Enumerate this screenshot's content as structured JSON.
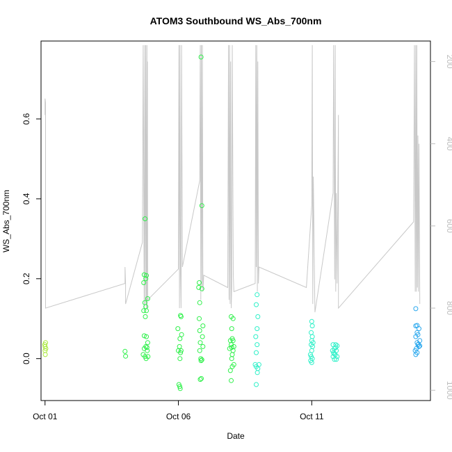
{
  "chart_data": {
    "type": "scatter",
    "title": "ATOM3 Southbound WS_Abs_700nm",
    "xlabel": "Date",
    "ylabel": "WS_Abs_700nm",
    "x_ticks": [
      {
        "day": 1,
        "label": "Oct 01"
      },
      {
        "day": 6,
        "label": "Oct 06"
      },
      {
        "day": 11,
        "label": "Oct 11"
      }
    ],
    "y_ticks": [
      0.0,
      0.2,
      0.4,
      0.6
    ],
    "y_tick_labels": [
      "0.0",
      "0.2",
      "0.4",
      "0.6"
    ],
    "xlim": [
      0.85,
      15.45
    ],
    "ylim": [
      -0.105,
      0.795
    ],
    "secondary_axis": {
      "ticks": [
        200,
        400,
        600,
        800,
        1000
      ],
      "tick_labels": [
        "200",
        "400",
        "600",
        "800",
        "1000"
      ],
      "lim_top": 150,
      "lim_bottom": 1025,
      "reversed": true,
      "color": "#bdbdbd"
    },
    "grid": false,
    "legend": "none",
    "point_color_scale": [
      "#a8e83a",
      "#2ef04a",
      "#2ef0c8",
      "#2aa8ee"
    ],
    "points": [
      {
        "x": 1.0,
        "y": 0.03
      },
      {
        "x": 1.02,
        "y": 0.04
      },
      {
        "x": 1.0,
        "y": 0.02
      },
      {
        "x": 1.01,
        "y": 0.01
      },
      {
        "x": 1.03,
        "y": 0.025
      },
      {
        "x": 0.99,
        "y": 0.035
      },
      {
        "x": 4.0,
        "y": 0.018
      },
      {
        "x": 4.02,
        "y": 0.006
      },
      {
        "x": 4.75,
        "y": 0.35
      },
      {
        "x": 4.72,
        "y": 0.21
      },
      {
        "x": 4.78,
        "y": 0.2
      },
      {
        "x": 4.8,
        "y": 0.208
      },
      {
        "x": 4.7,
        "y": 0.19
      },
      {
        "x": 4.85,
        "y": 0.15
      },
      {
        "x": 4.74,
        "y": 0.14
      },
      {
        "x": 4.78,
        "y": 0.13
      },
      {
        "x": 4.7,
        "y": 0.12
      },
      {
        "x": 4.8,
        "y": 0.12
      },
      {
        "x": 4.76,
        "y": 0.105
      },
      {
        "x": 4.72,
        "y": 0.057
      },
      {
        "x": 4.8,
        "y": 0.055
      },
      {
        "x": 4.85,
        "y": 0.04
      },
      {
        "x": 4.78,
        "y": 0.03
      },
      {
        "x": 4.72,
        "y": 0.025
      },
      {
        "x": 4.83,
        "y": 0.02
      },
      {
        "x": 4.68,
        "y": 0.01
      },
      {
        "x": 4.75,
        "y": 0.005
      },
      {
        "x": 4.86,
        "y": 0.005
      },
      {
        "x": 4.79,
        "y": 0.0
      },
      {
        "x": 4.82,
        "y": 0.028
      },
      {
        "x": 5.98,
        "y": 0.075
      },
      {
        "x": 6.08,
        "y": 0.108
      },
      {
        "x": 6.1,
        "y": 0.105
      },
      {
        "x": 6.12,
        "y": 0.06
      },
      {
        "x": 6.06,
        "y": 0.05
      },
      {
        "x": 6.04,
        "y": 0.03
      },
      {
        "x": 6.1,
        "y": 0.02
      },
      {
        "x": 6.0,
        "y": 0.02
      },
      {
        "x": 6.08,
        "y": 0.015
      },
      {
        "x": 6.06,
        "y": 0.0
      },
      {
        "x": 6.02,
        "y": -0.065
      },
      {
        "x": 6.05,
        "y": -0.07
      },
      {
        "x": 6.07,
        "y": -0.075
      },
      {
        "x": 6.85,
        "y": 0.755
      },
      {
        "x": 6.88,
        "y": 0.383
      },
      {
        "x": 6.78,
        "y": 0.19
      },
      {
        "x": 6.76,
        "y": 0.178
      },
      {
        "x": 6.88,
        "y": 0.175
      },
      {
        "x": 6.8,
        "y": 0.14
      },
      {
        "x": 6.78,
        "y": 0.1
      },
      {
        "x": 6.92,
        "y": 0.082
      },
      {
        "x": 6.8,
        "y": 0.07
      },
      {
        "x": 6.9,
        "y": 0.055
      },
      {
        "x": 6.82,
        "y": 0.04
      },
      {
        "x": 6.92,
        "y": 0.03
      },
      {
        "x": 6.8,
        "y": 0.02
      },
      {
        "x": 6.84,
        "y": 0.0
      },
      {
        "x": 6.88,
        "y": -0.003
      },
      {
        "x": 6.85,
        "y": -0.005
      },
      {
        "x": 6.86,
        "y": -0.05
      },
      {
        "x": 6.82,
        "y": -0.052
      },
      {
        "x": 7.98,
        "y": 0.105
      },
      {
        "x": 8.05,
        "y": 0.1
      },
      {
        "x": 8.0,
        "y": 0.075
      },
      {
        "x": 8.02,
        "y": 0.05
      },
      {
        "x": 7.95,
        "y": 0.045
      },
      {
        "x": 8.05,
        "y": 0.045
      },
      {
        "x": 7.98,
        "y": 0.035
      },
      {
        "x": 8.08,
        "y": 0.03
      },
      {
        "x": 8.0,
        "y": 0.028
      },
      {
        "x": 7.92,
        "y": 0.025
      },
      {
        "x": 8.05,
        "y": 0.02
      },
      {
        "x": 8.02,
        "y": 0.01
      },
      {
        "x": 8.0,
        "y": 0.0
      },
      {
        "x": 8.08,
        "y": -0.015
      },
      {
        "x": 8.02,
        "y": -0.02
      },
      {
        "x": 7.95,
        "y": -0.03
      },
      {
        "x": 7.98,
        "y": -0.055
      },
      {
        "x": 8.95,
        "y": 0.16
      },
      {
        "x": 8.92,
        "y": 0.135
      },
      {
        "x": 8.98,
        "y": 0.105
      },
      {
        "x": 8.95,
        "y": 0.075
      },
      {
        "x": 8.9,
        "y": 0.055
      },
      {
        "x": 8.95,
        "y": 0.035
      },
      {
        "x": 8.92,
        "y": 0.015
      },
      {
        "x": 8.88,
        "y": -0.015
      },
      {
        "x": 8.92,
        "y": -0.02
      },
      {
        "x": 9.02,
        "y": -0.015
      },
      {
        "x": 8.98,
        "y": -0.025
      },
      {
        "x": 8.96,
        "y": -0.035
      },
      {
        "x": 8.92,
        "y": -0.065
      },
      {
        "x": 11.0,
        "y": 0.093
      },
      {
        "x": 11.02,
        "y": 0.082
      },
      {
        "x": 10.98,
        "y": 0.065
      },
      {
        "x": 11.02,
        "y": 0.055
      },
      {
        "x": 11.0,
        "y": 0.045
      },
      {
        "x": 11.05,
        "y": 0.04
      },
      {
        "x": 10.98,
        "y": 0.035
      },
      {
        "x": 11.03,
        "y": 0.03
      },
      {
        "x": 11.0,
        "y": 0.02
      },
      {
        "x": 10.95,
        "y": 0.01
      },
      {
        "x": 10.98,
        "y": 0.005
      },
      {
        "x": 11.02,
        "y": 0.0
      },
      {
        "x": 10.96,
        "y": -0.005
      },
      {
        "x": 11.0,
        "y": -0.01
      },
      {
        "x": 11.8,
        "y": 0.035
      },
      {
        "x": 11.9,
        "y": 0.035
      },
      {
        "x": 11.95,
        "y": 0.032
      },
      {
        "x": 11.85,
        "y": 0.025
      },
      {
        "x": 11.78,
        "y": 0.02
      },
      {
        "x": 11.92,
        "y": 0.02
      },
      {
        "x": 11.82,
        "y": 0.015
      },
      {
        "x": 11.88,
        "y": 0.01
      },
      {
        "x": 11.95,
        "y": 0.005
      },
      {
        "x": 11.8,
        "y": 0.005
      },
      {
        "x": 11.85,
        "y": -0.002
      },
      {
        "x": 11.92,
        "y": -0.002
      },
      {
        "x": 11.9,
        "y": 0.028
      },
      {
        "x": 11.84,
        "y": 0.012
      },
      {
        "x": 14.9,
        "y": 0.125
      },
      {
        "x": 14.9,
        "y": 0.082
      },
      {
        "x": 14.95,
        "y": 0.083
      },
      {
        "x": 15.02,
        "y": 0.075
      },
      {
        "x": 14.95,
        "y": 0.065
      },
      {
        "x": 14.98,
        "y": 0.06
      },
      {
        "x": 14.9,
        "y": 0.055
      },
      {
        "x": 15.05,
        "y": 0.045
      },
      {
        "x": 14.95,
        "y": 0.04
      },
      {
        "x": 14.98,
        "y": 0.035
      },
      {
        "x": 15.02,
        "y": 0.03
      },
      {
        "x": 15.05,
        "y": 0.032
      },
      {
        "x": 14.92,
        "y": 0.025
      },
      {
        "x": 14.88,
        "y": 0.02
      },
      {
        "x": 14.95,
        "y": 0.015
      },
      {
        "x": 14.9,
        "y": 0.01
      },
      {
        "x": 15.0,
        "y": 0.036
      }
    ],
    "secondary_line": [
      [
        1.0,
        330
      ],
      [
        1.0,
        290
      ],
      [
        1.02,
        300
      ],
      [
        1.02,
        800
      ],
      [
        4.0,
        740
      ],
      [
        4.0,
        700
      ],
      [
        4.02,
        740
      ],
      [
        4.02,
        790
      ],
      [
        4.65,
        640
      ],
      [
        4.68,
        160
      ],
      [
        4.72,
        800
      ],
      [
        4.74,
        160
      ],
      [
        4.76,
        790
      ],
      [
        4.78,
        160
      ],
      [
        4.8,
        800
      ],
      [
        4.82,
        160
      ],
      [
        4.83,
        800
      ],
      [
        4.84,
        200
      ],
      [
        4.85,
        780
      ],
      [
        6.0,
        705
      ],
      [
        6.02,
        160
      ],
      [
        6.04,
        800
      ],
      [
        6.06,
        160
      ],
      [
        6.08,
        720
      ],
      [
        6.1,
        800
      ],
      [
        6.12,
        160
      ],
      [
        6.15,
        700
      ],
      [
        6.8,
        490
      ],
      [
        6.82,
        160
      ],
      [
        6.84,
        780
      ],
      [
        6.86,
        160
      ],
      [
        6.88,
        750
      ],
      [
        6.9,
        160
      ],
      [
        6.92,
        760
      ],
      [
        6.95,
        720
      ],
      [
        7.85,
        750
      ],
      [
        7.88,
        160
      ],
      [
        7.9,
        780
      ],
      [
        7.92,
        160
      ],
      [
        7.94,
        790
      ],
      [
        7.96,
        200
      ],
      [
        7.98,
        800
      ],
      [
        8.0,
        750
      ],
      [
        8.02,
        160
      ],
      [
        8.06,
        720
      ],
      [
        8.08,
        760
      ],
      [
        8.88,
        740
      ],
      [
        8.9,
        160
      ],
      [
        8.92,
        700
      ],
      [
        8.94,
        160
      ],
      [
        8.96,
        760
      ],
      [
        8.98,
        200
      ],
      [
        9.0,
        740
      ],
      [
        9.02,
        700
      ],
      [
        10.8,
        750
      ],
      [
        11.0,
        550
      ],
      [
        11.02,
        160
      ],
      [
        11.04,
        790
      ],
      [
        11.06,
        480
      ],
      [
        11.1,
        720
      ],
      [
        11.12,
        810
      ],
      [
        11.8,
        520
      ],
      [
        11.82,
        160
      ],
      [
        11.86,
        730
      ],
      [
        11.88,
        160
      ],
      [
        11.9,
        760
      ],
      [
        11.92,
        520
      ],
      [
        11.95,
        740
      ],
      [
        12.0,
        330
      ],
      [
        12.0,
        800
      ],
      [
        14.82,
        590
      ],
      [
        14.85,
        160
      ],
      [
        14.88,
        760
      ],
      [
        14.9,
        160
      ],
      [
        14.92,
        760
      ],
      [
        14.94,
        160
      ],
      [
        14.96,
        750
      ],
      [
        14.98,
        380
      ],
      [
        15.0,
        760
      ],
      [
        15.02,
        400
      ],
      [
        15.05,
        790
      ]
    ]
  }
}
